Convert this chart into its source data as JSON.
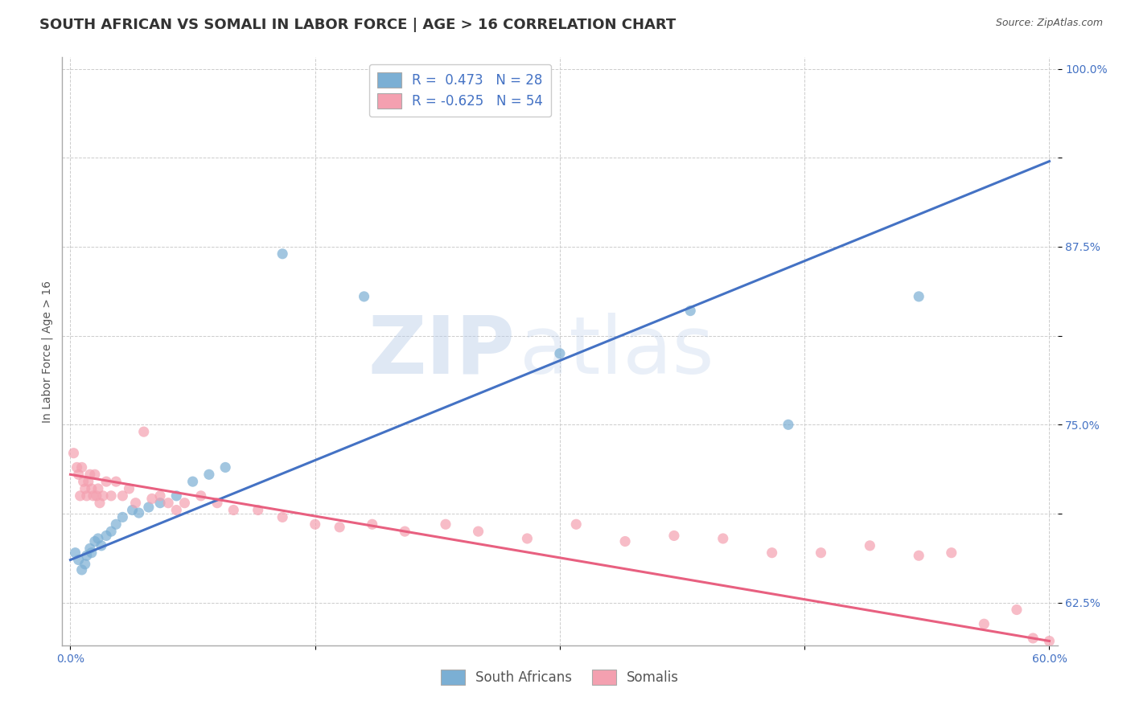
{
  "title": "SOUTH AFRICAN VS SOMALI IN LABOR FORCE | AGE > 16 CORRELATION CHART",
  "source": "Source: ZipAtlas.com",
  "ylabel_label": "In Labor Force | Age > 16",
  "x_min": -0.005,
  "x_max": 0.605,
  "y_min": 0.595,
  "y_max": 1.008,
  "x_ticks": [
    0.0,
    0.15,
    0.3,
    0.45,
    0.6
  ],
  "x_tick_labels": [
    "0.0%",
    "",
    "",
    "",
    "60.0%"
  ],
  "y_ticks": [
    0.625,
    0.6875,
    0.75,
    0.8125,
    0.875,
    0.9375,
    1.0
  ],
  "y_tick_labels": [
    "62.5%",
    "",
    "75.0%",
    "",
    "87.5%",
    "",
    "100.0%"
  ],
  "blue_R": 0.473,
  "blue_N": 28,
  "pink_R": -0.625,
  "pink_N": 54,
  "blue_color": "#7BAFD4",
  "pink_color": "#F4A0B0",
  "blue_line_color": "#4472C4",
  "pink_line_color": "#E86080",
  "watermark_zip": "ZIP",
  "watermark_atlas": "atlas",
  "legend_label_blue": "South Africans",
  "legend_label_pink": "Somalis",
  "blue_scatter_x": [
    0.003,
    0.005,
    0.007,
    0.009,
    0.01,
    0.012,
    0.013,
    0.015,
    0.017,
    0.019,
    0.022,
    0.025,
    0.028,
    0.032,
    0.038,
    0.042,
    0.048,
    0.055,
    0.065,
    0.075,
    0.085,
    0.095,
    0.13,
    0.18,
    0.3,
    0.38,
    0.44,
    0.52
  ],
  "blue_scatter_y": [
    0.66,
    0.655,
    0.648,
    0.652,
    0.658,
    0.663,
    0.66,
    0.668,
    0.67,
    0.665,
    0.672,
    0.675,
    0.68,
    0.685,
    0.69,
    0.688,
    0.692,
    0.695,
    0.7,
    0.71,
    0.715,
    0.72,
    0.87,
    0.84,
    0.8,
    0.83,
    0.75,
    0.84
  ],
  "pink_scatter_x": [
    0.002,
    0.004,
    0.005,
    0.006,
    0.007,
    0.008,
    0.009,
    0.01,
    0.011,
    0.012,
    0.013,
    0.014,
    0.015,
    0.016,
    0.017,
    0.018,
    0.02,
    0.022,
    0.025,
    0.028,
    0.032,
    0.036,
    0.04,
    0.045,
    0.05,
    0.055,
    0.06,
    0.065,
    0.07,
    0.08,
    0.09,
    0.1,
    0.115,
    0.13,
    0.15,
    0.165,
    0.185,
    0.205,
    0.23,
    0.25,
    0.28,
    0.31,
    0.34,
    0.37,
    0.4,
    0.43,
    0.46,
    0.49,
    0.52,
    0.54,
    0.56,
    0.58,
    0.59,
    0.6
  ],
  "pink_scatter_y": [
    0.73,
    0.72,
    0.715,
    0.7,
    0.72,
    0.71,
    0.705,
    0.7,
    0.71,
    0.715,
    0.705,
    0.7,
    0.715,
    0.7,
    0.705,
    0.695,
    0.7,
    0.71,
    0.7,
    0.71,
    0.7,
    0.705,
    0.695,
    0.745,
    0.698,
    0.7,
    0.695,
    0.69,
    0.695,
    0.7,
    0.695,
    0.69,
    0.69,
    0.685,
    0.68,
    0.678,
    0.68,
    0.675,
    0.68,
    0.675,
    0.67,
    0.68,
    0.668,
    0.672,
    0.67,
    0.66,
    0.66,
    0.665,
    0.658,
    0.66,
    0.61,
    0.62,
    0.6,
    0.598
  ],
  "blue_line_x": [
    0.0,
    0.6
  ],
  "blue_line_y": [
    0.655,
    0.935
  ],
  "pink_line_x": [
    0.0,
    0.6
  ],
  "pink_line_y": [
    0.715,
    0.598
  ],
  "title_fontsize": 13,
  "source_fontsize": 9,
  "axis_label_fontsize": 10,
  "tick_fontsize": 10,
  "legend_fontsize": 12,
  "marker_size": 90,
  "background_color": "#ffffff",
  "grid_color": "#cccccc",
  "tick_color": "#4472C4"
}
